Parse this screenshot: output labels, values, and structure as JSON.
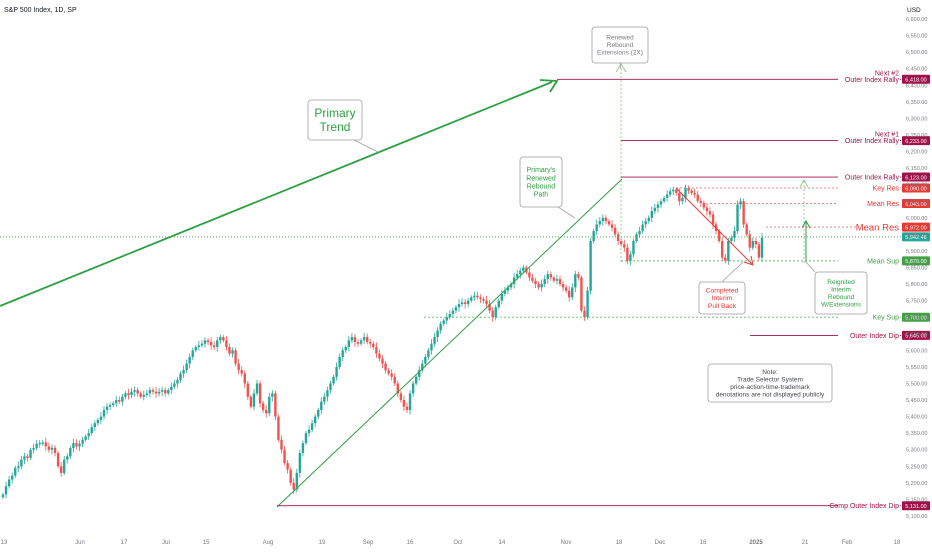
{
  "header": {
    "title": "S&P 500 Index, 1D, SP",
    "currency": "USD"
  },
  "chart_data": {
    "type": "candlestick",
    "title": "S&P 500 Index, 1D, SP",
    "xlabel": "",
    "ylabel": "",
    "ylim": [
      5060,
      6650
    ],
    "grid": false,
    "colors": {
      "up": "#26a69a",
      "down": "#ef5350",
      "bull_line": "#2ea043",
      "level": "#a0134a",
      "dashed": "#7cc67c",
      "mean_res": "#e06060"
    },
    "x_ticks": [
      "13",
      "Jun",
      "17",
      "Jul",
      "15",
      "Aug",
      "19",
      "Sep",
      "16",
      "Oct",
      "14",
      "Nov",
      "18",
      "Dec",
      "16",
      "2025",
      "21",
      "Feb",
      "18"
    ],
    "y_ticks": [
      "5,100.00",
      "5,150.00",
      "5,200.00",
      "5,250.00",
      "5,300.00",
      "5,350.00",
      "5,400.00",
      "5,450.00",
      "5,500.00",
      "5,550.00",
      "5,600.00",
      "5,650.00",
      "5,700.00",
      "5,750.00",
      "5,800.00",
      "5,850.00",
      "5,900.00",
      "5,950.00",
      "6,000.00",
      "6,050.00",
      "6,100.00",
      "6,150.00",
      "6,200.00",
      "6,250.00",
      "6,300.00",
      "6,350.00",
      "6,400.00",
      "6,450.00",
      "6,500.00",
      "6,550.00",
      "6,600.00"
    ],
    "closes": [
      5165,
      5190,
      5210,
      5222,
      5245,
      5250,
      5270,
      5280,
      5275,
      5300,
      5305,
      5318,
      5320,
      5322,
      5310,
      5300,
      5306,
      5290,
      5250,
      5230,
      5270,
      5280,
      5305,
      5320,
      5310,
      5318,
      5330,
      5340,
      5350,
      5368,
      5380,
      5390,
      5400,
      5420,
      5430,
      5435,
      5440,
      5450,
      5445,
      5460,
      5470,
      5465,
      5475,
      5480,
      5470,
      5460,
      5465,
      5470,
      5480,
      5475,
      5470,
      5475,
      5480,
      5470,
      5480,
      5490,
      5500,
      5510,
      5530,
      5540,
      5560,
      5580,
      5600,
      5610,
      5615,
      5620,
      5630,
      5625,
      5615,
      5610,
      5630,
      5640,
      5630,
      5610,
      5590,
      5600,
      5560,
      5540,
      5530,
      5500,
      5460,
      5430,
      5470,
      5500,
      5440,
      5420,
      5410,
      5460,
      5470,
      5400,
      5330,
      5300,
      5260,
      5240,
      5200,
      5180,
      5230,
      5290,
      5320,
      5350,
      5360,
      5380,
      5400,
      5420,
      5445,
      5460,
      5480,
      5500,
      5520,
      5550,
      5580,
      5600,
      5610,
      5630,
      5640,
      5625,
      5620,
      5630,
      5640,
      5625,
      5620,
      5610,
      5590,
      5575,
      5560,
      5540,
      5530,
      5520,
      5500,
      5470,
      5450,
      5430,
      5420,
      5470,
      5500,
      5520,
      5540,
      5560,
      5580,
      5600,
      5620,
      5640,
      5660,
      5680,
      5690,
      5700,
      5710,
      5720,
      5730,
      5740,
      5745,
      5740,
      5750,
      5760,
      5765,
      5760,
      5755,
      5750,
      5740,
      5720,
      5700,
      5730,
      5750,
      5770,
      5780,
      5790,
      5800,
      5820,
      5830,
      5840,
      5850,
      5835,
      5820,
      5810,
      5800,
      5790,
      5800,
      5815,
      5830,
      5820,
      5810,
      5815,
      5800,
      5790,
      5780,
      5760,
      5790,
      5830,
      5820,
      5720,
      5700,
      5780,
      5930,
      5960,
      5980,
      5990,
      6000,
      5990,
      5980,
      5970,
      5950,
      5930,
      5920,
      5910,
      5870,
      5890,
      5930,
      5950,
      5960,
      5980,
      5990,
      6000,
      6020,
      6030,
      6040,
      6050,
      6060,
      6070,
      6080,
      6085,
      6075,
      6050,
      6060,
      6090,
      6082,
      6075,
      6070,
      6051,
      6045,
      6031,
      6020,
      6010,
      5980,
      5960,
      5930,
      5880,
      5870,
      5930,
      5940,
      5960,
      6040,
      6050,
      5980,
      5950,
      5910,
      5930,
      5920,
      5880,
      5940
    ],
    "levels": [
      {
        "value": 6418.0,
        "label": "Outer Index Rally",
        "prefix": "Next #2",
        "tag": "6,418.00"
      },
      {
        "value": 6233.0,
        "label": "Outer Index Rally",
        "prefix": "Next #1",
        "tag": "6,233.00"
      },
      {
        "value": 6123.0,
        "label": "Outer Index Rally",
        "prefix": "",
        "tag": "6,123.00"
      },
      {
        "value": 6090.0,
        "label": "Key Res",
        "prefix": "",
        "tag": "6,090.00"
      },
      {
        "value": 6043.0,
        "label": "Mean Res",
        "prefix": "",
        "tag": "6,043.00"
      },
      {
        "value": 5972.0,
        "label": "Mean Res",
        "prefix": "",
        "tag": "5,972.00"
      },
      {
        "value": 5942.46,
        "label": "",
        "prefix": "",
        "tag": "5,942.46"
      },
      {
        "value": 5870.0,
        "label": "Mean Sup",
        "prefix": "",
        "tag": "5,870.00"
      },
      {
        "value": 5700.0,
        "label": "Key Sup",
        "prefix": "",
        "tag": "5,700.00"
      },
      {
        "value": 5645.0,
        "label": "Outer Index Dip",
        "prefix": "",
        "tag": "5,645.00"
      },
      {
        "value": 5131.0,
        "label": "Comp Outer Index Dip",
        "prefix": "",
        "tag": "5,131.00"
      }
    ],
    "annotations": {
      "primary_trend": "Primary\nTrend",
      "renewed_path": "Primary's\nRenewed\nRebound\nPath",
      "renewed_ext": "Renewed\nRebound\nExtensions (2X)",
      "completed": "Completed\nInterim\nPull Back",
      "reignited": "Reignited\nInterim\nRebound\nW/Extensions",
      "note": "Note:\nTrade Selector System\nprice-action-time-trademark\ndenotations are not displayed publicly"
    }
  }
}
